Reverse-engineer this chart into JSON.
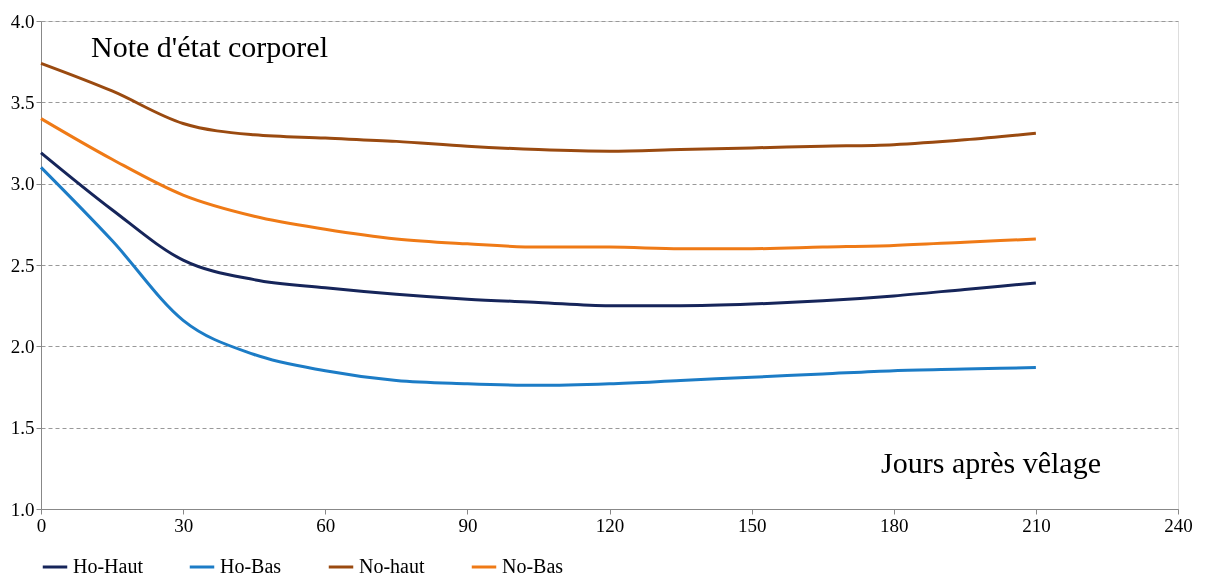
{
  "chart_data": {
    "type": "line",
    "title": "Note d'état corporel",
    "xlabel": "Jours après vêlage",
    "x": [
      0,
      15,
      30,
      45,
      60,
      75,
      90,
      105,
      120,
      135,
      150,
      165,
      180,
      195,
      210
    ],
    "series": [
      {
        "name": "Ho-Haut",
        "color": "#16255a",
        "values": [
          3.19,
          2.84,
          2.53,
          2.41,
          2.36,
          2.32,
          2.29,
          2.27,
          2.25,
          2.25,
          2.26,
          2.28,
          2.31,
          2.35,
          2.39
        ]
      },
      {
        "name": "Ho-Bas",
        "color": "#1c7cc6",
        "values": [
          3.1,
          2.65,
          2.16,
          1.95,
          1.85,
          1.79,
          1.77,
          1.76,
          1.77,
          1.79,
          1.81,
          1.83,
          1.85,
          1.86,
          1.87
        ]
      },
      {
        "name": "No-haut",
        "color": "#9a4a10",
        "values": [
          3.74,
          3.57,
          3.37,
          3.3,
          3.28,
          3.26,
          3.23,
          3.21,
          3.2,
          3.21,
          3.22,
          3.23,
          3.24,
          3.27,
          3.31
        ]
      },
      {
        "name": "No-Bas",
        "color": "#ef7a16",
        "values": [
          3.4,
          3.15,
          2.93,
          2.8,
          2.72,
          2.66,
          2.63,
          2.61,
          2.61,
          2.6,
          2.6,
          2.61,
          2.62,
          2.64,
          2.66
        ]
      }
    ],
    "xlim": [
      0,
      240
    ],
    "xticks": [
      0,
      30,
      60,
      90,
      120,
      150,
      180,
      210,
      240
    ],
    "ylim": [
      1.0,
      4.0
    ],
    "yticks": [
      {
        "value": 1,
        "label": "1.0"
      },
      1.5,
      {
        "value": 2,
        "label": "2.0"
      },
      2.5,
      {
        "value": 3,
        "label": "3.0"
      },
      3.5,
      {
        "value": 4,
        "label": "4.0"
      }
    ],
    "grid": "y",
    "legend": "bottom",
    "marker": "none",
    "line_style": "solid"
  }
}
